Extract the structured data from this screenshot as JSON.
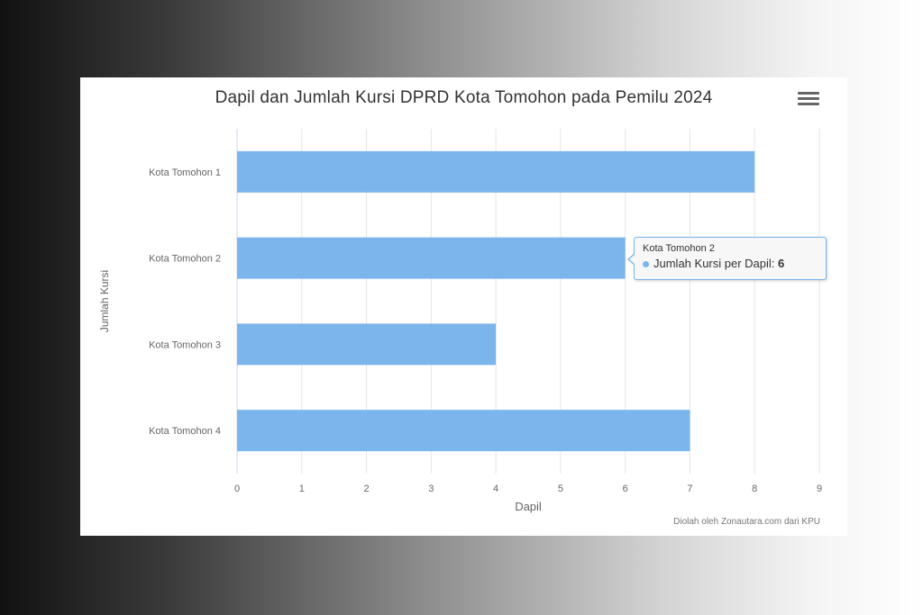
{
  "chart_data": {
    "type": "bar",
    "orientation": "horizontal",
    "title": "Dapil dan Jumlah Kursi DPRD Kota Tomohon pada Pemilu 2024",
    "categories": [
      "Kota Tomohon 1",
      "Kota Tomohon 2",
      "Kota Tomohon 3",
      "Kota Tomohon 4"
    ],
    "series": [
      {
        "name": "Jumlah Kursi per Dapil",
        "values": [
          8,
          6,
          4,
          7
        ]
      }
    ],
    "xlabel": "Dapil",
    "ylabel": "Jumlah Kursi",
    "xlim": [
      0,
      9
    ],
    "xticks": [
      "0",
      "1",
      "2",
      "3",
      "4",
      "5",
      "6",
      "7",
      "8",
      "9"
    ],
    "grid": true,
    "bar_color": "#7cb5ec",
    "credits": "Diolah oleh Zonautara.com dari KPU"
  },
  "tooltip": {
    "category": "Kota Tomohon 2",
    "series_label": "Jumlah Kursi per Dapil: ",
    "value": "6"
  },
  "menu_icon": "hamburger-icon"
}
